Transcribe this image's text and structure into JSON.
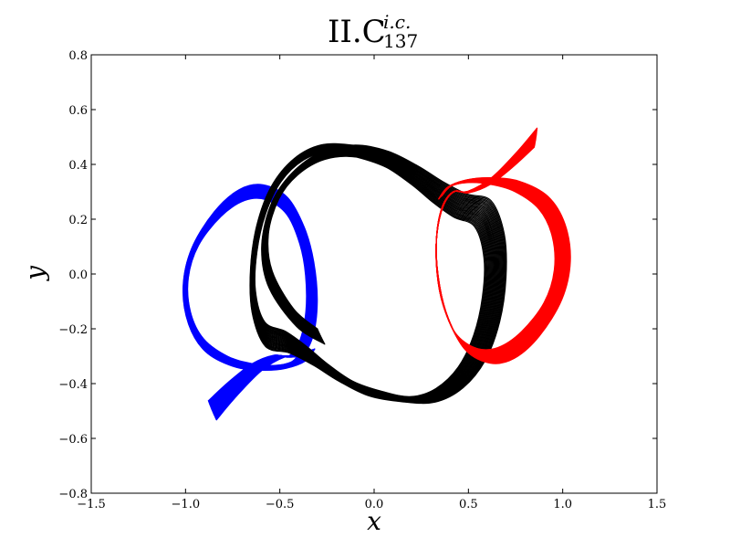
{
  "chart_data": {
    "type": "line",
    "title": {
      "main": "II.C",
      "superscript": "i.c.",
      "subscript": "137"
    },
    "xlabel": "x",
    "ylabel": "y",
    "xlim": [
      -1.5,
      1.5
    ],
    "ylim": [
      -0.8,
      0.8
    ],
    "xticks": [
      -1.5,
      -1.0,
      -0.5,
      0.0,
      0.5,
      1.0,
      1.5
    ],
    "yticks": [
      -0.8,
      -0.6,
      -0.4,
      -0.2,
      0.0,
      0.2,
      0.4,
      0.6,
      0.8
    ],
    "xtick_labels": [
      "−1.5",
      "−1.0",
      "−0.5",
      "0.0",
      "0.5",
      "1.0",
      "1.5"
    ],
    "ytick_labels": [
      "−0.8",
      "−0.6",
      "−0.4",
      "−0.2",
      "0.0",
      "0.2",
      "0.4",
      "0.6",
      "0.8"
    ],
    "grid": false,
    "legend": "none",
    "series": [
      {
        "color": "#0000ff",
        "points": [
          [
            -0.86,
            -0.5
          ],
          [
            -0.75,
            -0.42
          ],
          [
            -0.62,
            -0.34
          ],
          [
            -0.5,
            -0.3
          ],
          [
            -0.42,
            -0.3
          ],
          [
            -0.36,
            -0.24
          ],
          [
            -0.33,
            -0.12
          ],
          [
            -0.34,
            0.02
          ],
          [
            -0.38,
            0.14
          ],
          [
            -0.46,
            0.25
          ],
          [
            -0.58,
            0.3
          ],
          [
            -0.7,
            0.29
          ],
          [
            -0.83,
            0.22
          ],
          [
            -0.95,
            0.1
          ],
          [
            -1.0,
            -0.03
          ],
          [
            -0.98,
            -0.16
          ],
          [
            -0.9,
            -0.26
          ],
          [
            -0.76,
            -0.32
          ],
          [
            -0.62,
            -0.34
          ],
          [
            -0.5,
            -0.34
          ],
          [
            -0.4,
            -0.32
          ],
          [
            -0.35,
            -0.28
          ]
        ]
      },
      {
        "color": "#000000",
        "points": [
          [
            -0.28,
            -0.23
          ],
          [
            -0.42,
            -0.16
          ],
          [
            -0.55,
            -0.02
          ],
          [
            -0.58,
            0.12
          ],
          [
            -0.53,
            0.26
          ],
          [
            -0.43,
            0.36
          ],
          [
            -0.28,
            0.43
          ],
          [
            -0.1,
            0.45
          ],
          [
            0.07,
            0.42
          ],
          [
            0.22,
            0.36
          ],
          [
            0.34,
            0.3
          ],
          [
            0.46,
            0.25
          ],
          [
            0.58,
            0.22
          ],
          [
            0.64,
            0.1
          ],
          [
            0.64,
            -0.05
          ],
          [
            0.6,
            -0.2
          ],
          [
            0.52,
            -0.33
          ],
          [
            0.4,
            -0.42
          ],
          [
            0.26,
            -0.46
          ],
          [
            0.1,
            -0.45
          ],
          [
            -0.07,
            -0.42
          ],
          [
            -0.22,
            -0.36
          ],
          [
            -0.34,
            -0.3
          ],
          [
            -0.46,
            -0.25
          ],
          [
            -0.58,
            -0.22
          ],
          [
            -0.64,
            -0.1
          ],
          [
            -0.64,
            0.05
          ],
          [
            -0.6,
            0.2
          ],
          [
            -0.52,
            0.33
          ],
          [
            -0.4,
            0.42
          ],
          [
            -0.26,
            0.46
          ],
          [
            -0.1,
            0.45
          ],
          [
            0.07,
            0.42
          ],
          [
            0.22,
            0.36
          ]
        ]
      },
      {
        "color": "#ff0000",
        "points": [
          [
            0.86,
            0.5
          ],
          [
            0.75,
            0.42
          ],
          [
            0.62,
            0.34
          ],
          [
            0.5,
            0.3
          ],
          [
            0.42,
            0.3
          ],
          [
            0.36,
            0.24
          ],
          [
            0.33,
            0.12
          ],
          [
            0.34,
            -0.02
          ],
          [
            0.38,
            -0.14
          ],
          [
            0.46,
            -0.25
          ],
          [
            0.58,
            -0.3
          ],
          [
            0.7,
            -0.29
          ],
          [
            0.83,
            -0.22
          ],
          [
            0.95,
            -0.1
          ],
          [
            1.0,
            0.03
          ],
          [
            0.98,
            0.16
          ],
          [
            0.9,
            0.26
          ],
          [
            0.76,
            0.32
          ],
          [
            0.62,
            0.34
          ],
          [
            0.5,
            0.34
          ],
          [
            0.4,
            0.32
          ],
          [
            0.35,
            0.28
          ]
        ]
      }
    ]
  }
}
